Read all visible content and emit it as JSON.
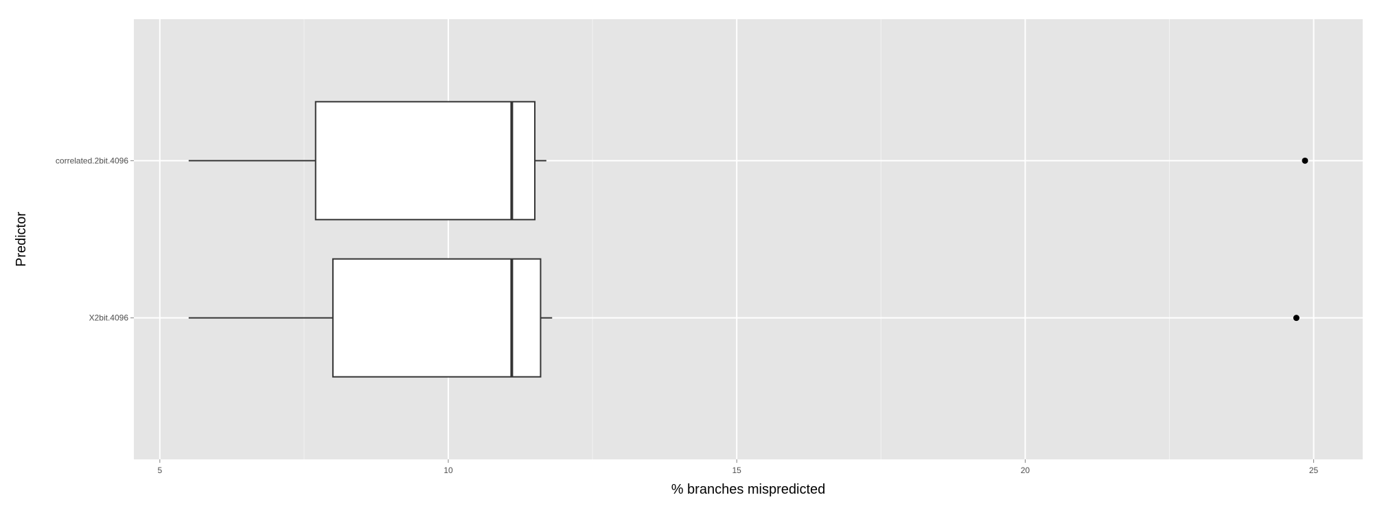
{
  "chart_data": {
    "type": "boxplot",
    "orientation": "horizontal",
    "title": "",
    "xlabel": "% branches mispredicted",
    "ylabel": "Predictor",
    "xlim": [
      4.55,
      25.85
    ],
    "x_ticks": [
      5,
      10,
      15,
      20,
      25
    ],
    "x_tick_labels": [
      "5",
      "10",
      "15",
      "20",
      "25"
    ],
    "categories": [
      "X2bit.4096",
      "correlated.2bit.4096"
    ],
    "boxes": [
      {
        "category": "X2bit.4096",
        "whisker_low": 5.5,
        "q1": 8.0,
        "median": 11.1,
        "q3": 11.6,
        "whisker_high": 11.8,
        "outliers": [
          24.7
        ]
      },
      {
        "category": "correlated.2bit.4096",
        "whisker_low": 5.5,
        "q1": 7.7,
        "median": 11.1,
        "q3": 11.5,
        "whisker_high": 11.7,
        "outliers": [
          24.85
        ]
      }
    ],
    "grid": true,
    "legend": "none",
    "colors": {
      "panel_background": "#e5e5e5",
      "grid_major": "#ffffff",
      "grid_minor": "#f2f2f2",
      "box_fill": "#ffffff",
      "box_stroke": "#333333",
      "tick_text": "#4d4d4d"
    }
  }
}
